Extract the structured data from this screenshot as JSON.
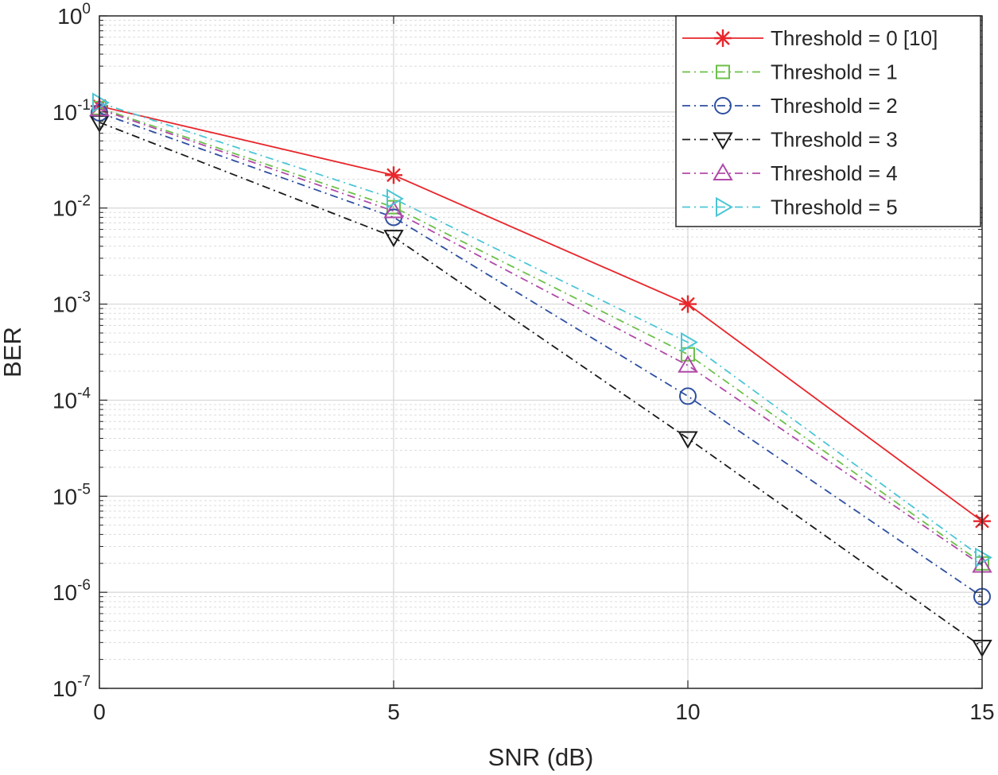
{
  "chart_data": {
    "type": "line",
    "title": "",
    "xlabel": "SNR (dB)",
    "ylabel": "BER",
    "xscale": "linear",
    "yscale": "log",
    "xlim": [
      0,
      15
    ],
    "ylim": [
      1e-07,
      1
    ],
    "grid": true,
    "legend_position": "top-right",
    "x": [
      0,
      5,
      10,
      15
    ],
    "x_ticks": [
      "0",
      "5",
      "10",
      "15"
    ],
    "y_ticks": [
      {
        "base": "10",
        "exp": "0"
      },
      {
        "base": "10",
        "exp": "-1"
      },
      {
        "base": "10",
        "exp": "-2"
      },
      {
        "base": "10",
        "exp": "-3"
      },
      {
        "base": "10",
        "exp": "-4"
      },
      {
        "base": "10",
        "exp": "-5"
      },
      {
        "base": "10",
        "exp": "-6"
      },
      {
        "base": "10",
        "exp": "-7"
      }
    ],
    "series": [
      {
        "name": "Threshold = 0 [10]",
        "values": [
          0.115,
          0.022,
          0.001,
          5.5e-06
        ],
        "color": "#e8262b",
        "marker": "star",
        "line": "solid"
      },
      {
        "name": "Threshold = 1",
        "values": [
          0.11,
          0.0102,
          0.0003,
          2e-06
        ],
        "color": "#6cc04a",
        "marker": "square",
        "line": "dashdot"
      },
      {
        "name": "Threshold = 2",
        "values": [
          0.098,
          0.008,
          0.00011,
          9e-07
        ],
        "color": "#2e4fa1",
        "marker": "circle",
        "line": "dashdot"
      },
      {
        "name": "Threshold = 3",
        "values": [
          0.078,
          0.005,
          4e-05,
          2.7e-07
        ],
        "color": "#1a1a1a",
        "marker": "triangle-down",
        "line": "dashdot"
      },
      {
        "name": "Threshold = 4",
        "values": [
          0.107,
          0.0093,
          0.00023,
          1.9e-06
        ],
        "color": "#b04aa8",
        "marker": "triangle-up",
        "line": "dashdot"
      },
      {
        "name": "Threshold = 5",
        "values": [
          0.125,
          0.0125,
          0.0004,
          2.3e-06
        ],
        "color": "#4cc6d6",
        "marker": "triangle-right",
        "line": "dashdot"
      }
    ]
  }
}
